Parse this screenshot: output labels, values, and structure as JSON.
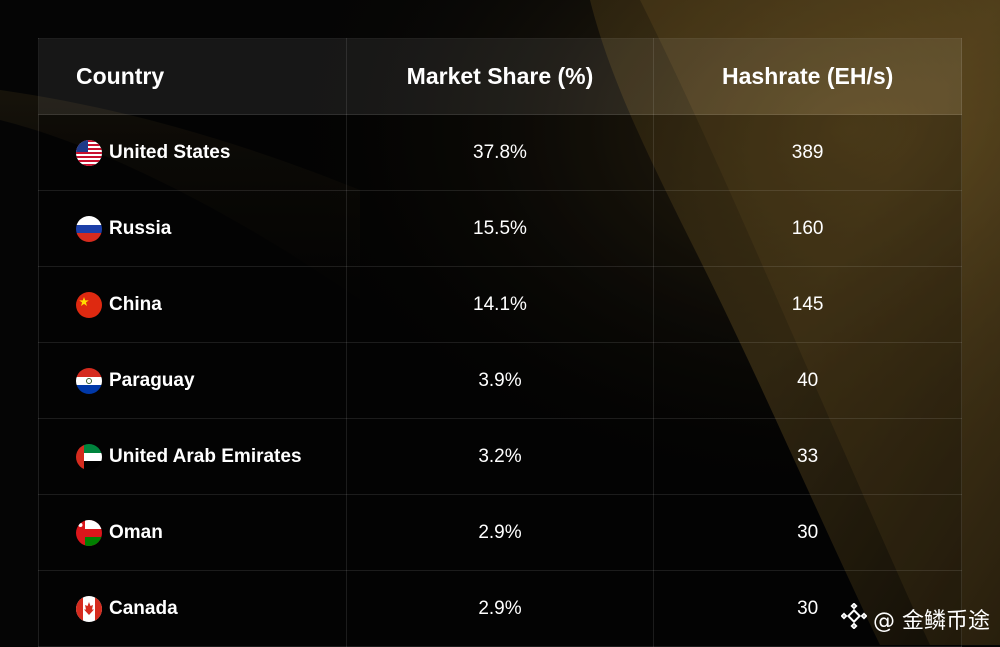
{
  "chart_data": {
    "type": "table",
    "columns": [
      "Country",
      "Market Share (%)",
      "Hashrate (EH/s)"
    ],
    "rows": [
      {
        "country": "United States",
        "flag": "us-flag-icon",
        "market_share": "37.8%",
        "hashrate": "389"
      },
      {
        "country": "Russia",
        "flag": "ru-flag-icon",
        "market_share": "15.5%",
        "hashrate": "160"
      },
      {
        "country": "China",
        "flag": "cn-flag-icon",
        "market_share": "14.1%",
        "hashrate": "145"
      },
      {
        "country": "Paraguay",
        "flag": "py-flag-icon",
        "market_share": "3.9%",
        "hashrate": "40"
      },
      {
        "country": "United Arab Emirates",
        "flag": "ae-flag-icon",
        "market_share": "3.2%",
        "hashrate": "33"
      },
      {
        "country": "Oman",
        "flag": "om-flag-icon",
        "market_share": "2.9%",
        "hashrate": "30"
      },
      {
        "country": "Canada",
        "flag": "ca-flag-icon",
        "market_share": "2.9%",
        "hashrate": "30"
      }
    ]
  },
  "watermark": {
    "text": "@ 金鳞币途",
    "icon": "binance-logo-icon"
  },
  "colors": {
    "background": "#050505",
    "accent_gold": "#a8892f",
    "text": "#ffffff"
  }
}
